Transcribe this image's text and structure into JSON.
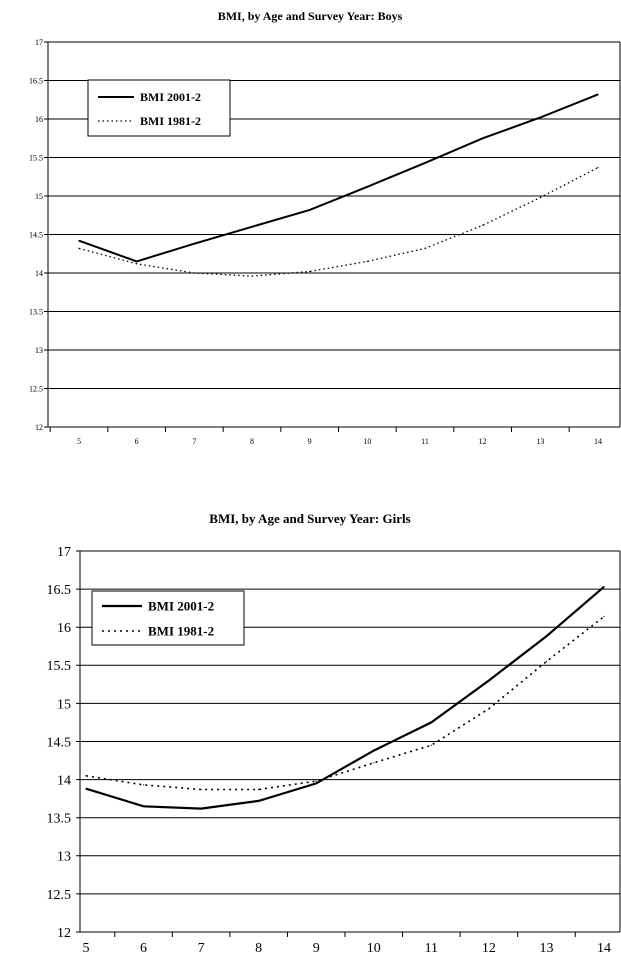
{
  "chart_data": [
    {
      "type": "line",
      "title": "BMI, by Age and Survey Year: Boys",
      "xlabel": "",
      "ylabel": "",
      "x": [
        5,
        6,
        7,
        8,
        9,
        10,
        11,
        12,
        13,
        14
      ],
      "ylim": [
        12,
        17
      ],
      "yticks": [
        "12",
        "12.5",
        "13",
        "13.5",
        "14",
        "14.5",
        "15",
        "15.5",
        "16",
        "16.5",
        "17"
      ],
      "xticks": [
        "5",
        "6",
        "7",
        "8",
        "9",
        "10",
        "11",
        "12",
        "13",
        "14"
      ],
      "grid": true,
      "legend_position": "top-left",
      "series": [
        {
          "name": "BMI 2001-2",
          "style": "solid",
          "color": "#000000",
          "values": [
            14.42,
            14.15,
            14.38,
            14.6,
            14.82,
            15.12,
            15.43,
            15.75,
            16.02,
            16.32
          ]
        },
        {
          "name": "BMI 1981-2",
          "style": "dotted",
          "color": "#000000",
          "values": [
            14.32,
            14.12,
            14.0,
            13.96,
            14.02,
            14.15,
            14.32,
            14.62,
            14.98,
            15.37
          ]
        }
      ]
    },
    {
      "type": "line",
      "title": "BMI, by Age and Survey Year: Girls",
      "xlabel": "",
      "ylabel": "",
      "x": [
        5,
        6,
        7,
        8,
        9,
        10,
        11,
        12,
        13,
        14
      ],
      "ylim": [
        12,
        17
      ],
      "yticks": [
        "12",
        "12.5",
        "13",
        "13.5",
        "14",
        "14.5",
        "15",
        "15.5",
        "16",
        "16.5",
        "17"
      ],
      "xticks": [
        "5",
        "6",
        "7",
        "8",
        "9",
        "10",
        "11",
        "12",
        "13",
        "14"
      ],
      "grid": true,
      "legend_position": "top-left",
      "series": [
        {
          "name": "BMI 2001-2",
          "style": "solid",
          "color": "#000000",
          "values": [
            13.88,
            13.65,
            13.62,
            13.72,
            13.95,
            14.38,
            14.75,
            15.3,
            15.88,
            16.53
          ]
        },
        {
          "name": "BMI 1981-2",
          "style": "dotted",
          "color": "#000000",
          "values": [
            14.05,
            13.93,
            13.87,
            13.87,
            13.98,
            14.22,
            14.45,
            14.93,
            15.55,
            16.14
          ]
        }
      ]
    }
  ]
}
